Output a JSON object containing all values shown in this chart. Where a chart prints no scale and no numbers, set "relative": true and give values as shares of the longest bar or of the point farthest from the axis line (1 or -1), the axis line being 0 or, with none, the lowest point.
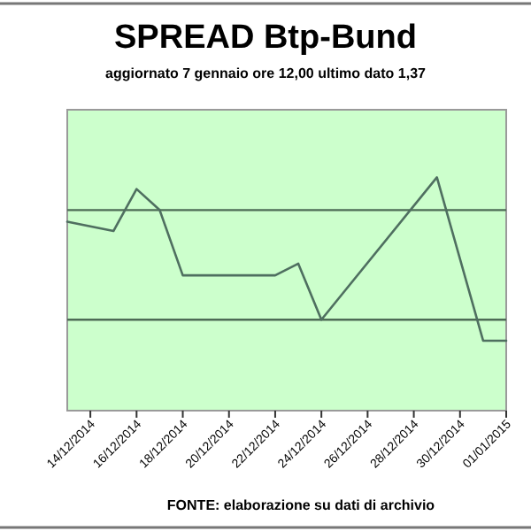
{
  "chart_data": {
    "type": "line",
    "title": "SPREAD Btp-Bund",
    "subtitle": "aggiornato 7 gennaio ore 12,00  ultimo dato  1,37",
    "relative": true,
    "x": [
      "2014-12-13",
      "2014-12-15",
      "2014-12-16",
      "2014-12-17",
      "2014-12-18",
      "2014-12-22",
      "2014-12-23",
      "2014-12-24",
      "2014-12-29",
      "2014-12-31",
      "2015-01-01"
    ],
    "series": [
      {
        "color": "#4f6f60",
        "values": [
          0.81,
          0.77,
          0.95,
          0.86,
          0.58,
          0.58,
          0.63,
          0.39,
          1,
          0.3,
          0.3
        ]
      }
    ],
    "xlim": [
      "2014-12-13",
      "2015-01-01"
    ],
    "xticks": [
      {
        "value": "2014-12-14",
        "label": "14/12/2014"
      },
      {
        "value": "2014-12-16",
        "label": "16/12/2014"
      },
      {
        "value": "2014-12-18",
        "label": "18/12/2014"
      },
      {
        "value": "2014-12-20",
        "label": "20/12/2014"
      },
      {
        "value": "2014-12-22",
        "label": "22/12/2014"
      },
      {
        "value": "2014-12-24",
        "label": "24/12/2014"
      },
      {
        "value": "2014-12-26",
        "label": "26/12/2014"
      },
      {
        "value": "2014-12-28",
        "label": "28/12/2014"
      },
      {
        "value": "2014-12-30",
        "label": "30/12/2014"
      },
      {
        "value": "2015-01-01",
        "label": "01/01/2015"
      }
    ],
    "ref_lines": [
      {
        "axis": "y",
        "value": 0.86,
        "color": "#4d6b55"
      },
      {
        "axis": "y",
        "value": 0.39,
        "color": "#4d6b55"
      }
    ],
    "annotations": [
      "FONTE: elaborazione su dati di archivio"
    ],
    "marker": "none",
    "line_style": "solid"
  }
}
